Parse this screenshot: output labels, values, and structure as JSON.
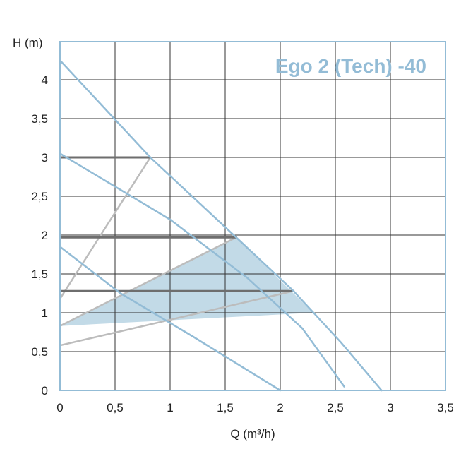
{
  "chart_data": {
    "type": "line",
    "title": "Ego 2 (Tech) -40",
    "xlabel": "Q (m³/h)",
    "ylabel": "H (m)",
    "xlim": [
      0,
      3.5
    ],
    "ylim": [
      0,
      4.5
    ],
    "x_ticks": [
      {
        "value": 0,
        "label": "0"
      },
      {
        "value": 0.5,
        "label": "0,5"
      },
      {
        "value": 1,
        "label": "1"
      },
      {
        "value": 1.5,
        "label": "1,5"
      },
      {
        "value": 2,
        "label": "2"
      },
      {
        "value": 2.5,
        "label": "2,5"
      },
      {
        "value": 3,
        "label": "3"
      },
      {
        "value": 3.5,
        "label": "3,5"
      }
    ],
    "y_ticks": [
      {
        "value": 0,
        "label": "0"
      },
      {
        "value": 0.5,
        "label": "0,5"
      },
      {
        "value": 1,
        "label": "1"
      },
      {
        "value": 1.5,
        "label": "1,5"
      },
      {
        "value": 2,
        "label": "2"
      },
      {
        "value": 2.5,
        "label": "2,5"
      },
      {
        "value": 3,
        "label": "3"
      },
      {
        "value": 3.5,
        "label": "3,5"
      },
      {
        "value": 4,
        "label": "4"
      }
    ],
    "grid": true,
    "colors": {
      "frame": "#93bcd6",
      "grid": "#333333",
      "pump_curve": "#93bcd6",
      "constant_pressure": "#6e6e6e",
      "proportional_pressure": "#bcbcbc",
      "fill": "#c2dae7"
    },
    "series": [
      {
        "kind": "pump_curve",
        "x": [
          0,
          0.82,
          1.6,
          2.12,
          2.55,
          2.92
        ],
        "y": [
          4.25,
          3.0,
          1.97,
          1.28,
          0.62,
          0.0
        ]
      },
      {
        "kind": "pump_curve",
        "x": [
          0,
          1.0,
          1.7,
          2.2,
          2.58
        ],
        "y": [
          3.05,
          2.2,
          1.45,
          0.8,
          0.05
        ]
      },
      {
        "kind": "pump_curve",
        "x": [
          0,
          0.55,
          1.2,
          2.0
        ],
        "y": [
          1.85,
          1.25,
          0.7,
          0.0
        ]
      },
      {
        "kind": "constant_pressure",
        "x": [
          0,
          0.82
        ],
        "y": [
          3.0,
          3.0
        ]
      },
      {
        "kind": "constant_pressure",
        "x": [
          0,
          1.6
        ],
        "y": [
          1.97,
          1.97
        ]
      },
      {
        "kind": "constant_pressure",
        "x": [
          0,
          2.12
        ],
        "y": [
          1.28,
          1.28
        ]
      },
      {
        "kind": "proportional_pressure",
        "x": [
          0,
          0.82
        ],
        "y": [
          1.18,
          3.0
        ]
      },
      {
        "kind": "proportional_pressure",
        "x": [
          0,
          1.6
        ],
        "y": [
          0.83,
          1.97
        ]
      },
      {
        "kind": "proportional_pressure",
        "x": [
          0,
          2.12
        ],
        "y": [
          0.58,
          1.28
        ]
      }
    ],
    "filled_region": {
      "x": [
        0,
        1.6,
        2.3,
        0
      ],
      "y": [
        0.83,
        1.97,
        1.0,
        0.83
      ]
    }
  }
}
